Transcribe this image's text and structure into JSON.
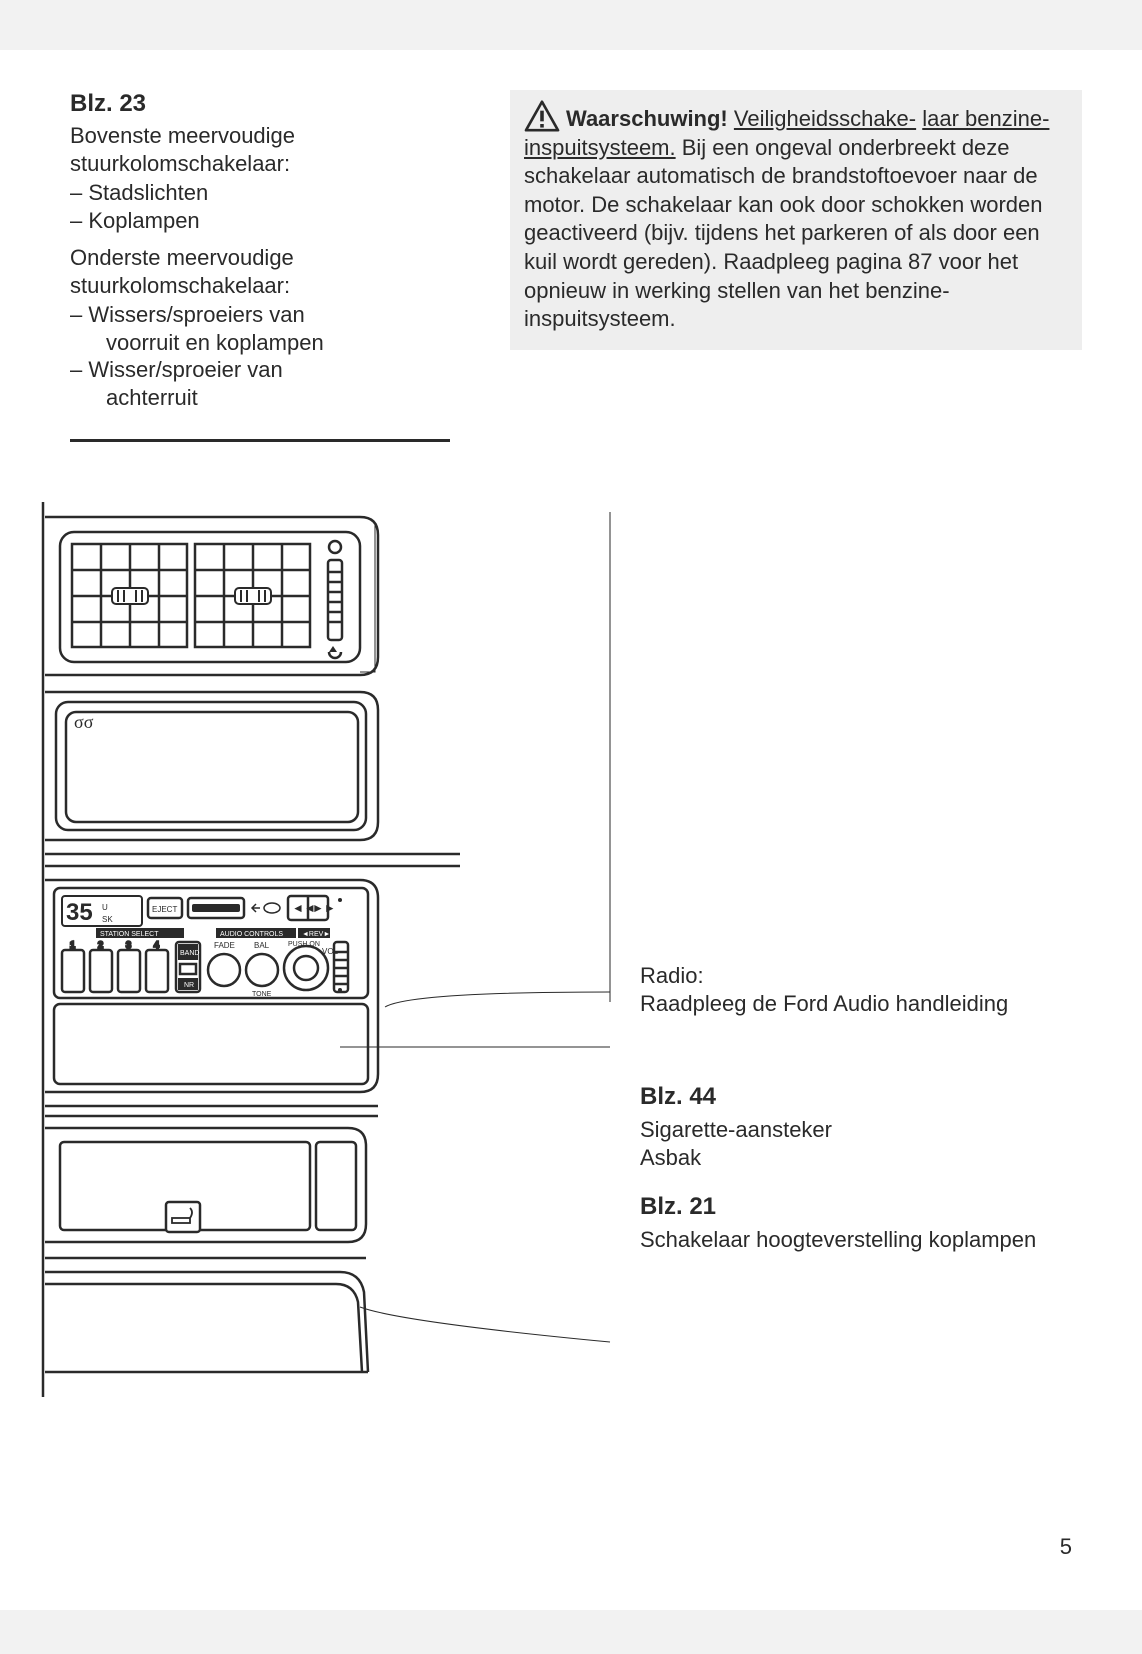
{
  "page_number": "5",
  "left": {
    "heading": "Blz. 23",
    "para1": "Bovenste meervoudige stuurkolomschakelaar:",
    "list1": [
      "Stadslichten",
      "Koplampen"
    ],
    "para2": "Onderste meervoudige stuurkolomschakelaar:",
    "list2a": "Wissers/sproeiers van",
    "list2a_sub": "voorruit en koplampen",
    "list2b": "Wisser/sproeier van",
    "list2b_sub": "achterruit"
  },
  "warning": {
    "title": "Waarschuwing!",
    "under1": "Veiligheidsschake-",
    "under2": "laar benzine-inspuitsysteem.",
    "body": " Bij een ongeval onderbreekt deze schakelaar automatisch de brandstoftoevoer naar de motor. De schakelaar kan ook door schokken worden geactiveerd (bijv. tijdens het parkeren of als door een kuil wordt gereden). Raadpleeg pagina 87 voor het opnieuw in werking stellen van het benzine-inspuitsysteem."
  },
  "callouts": {
    "radio_label": "Radio:",
    "radio_body": "Raadpleeg de Ford Audio handleiding",
    "blz44_heading": "Blz. 44",
    "blz44_line1": "Sigarette-aansteker",
    "blz44_line2": "Asbak",
    "blz21_heading": "Blz. 21",
    "blz21_body": "Schakelaar hoogteverstelling koplampen"
  },
  "radio_panel": {
    "freq": "35",
    "freq_small1": "U",
    "freq_small2": "SK",
    "eject": "EJECT",
    "station_select": "STATION SELECT",
    "audio_controls": "AUDIO CONTROLS",
    "rev": "◄REV►",
    "presets": [
      "1",
      "2",
      "3",
      "4"
    ],
    "band": "BAND",
    "nr": "NR",
    "fade": "FADE",
    "bal": "BAL",
    "tone": "TONE",
    "push_on": "PUSH ON",
    "vol": "VOL"
  },
  "vents_symbol": "σσ",
  "colors": {
    "stroke": "#2a2a2a",
    "page_bg": "#ffffff",
    "outer_bg": "#f2f2f2",
    "warn_bg": "#eeeeee"
  }
}
